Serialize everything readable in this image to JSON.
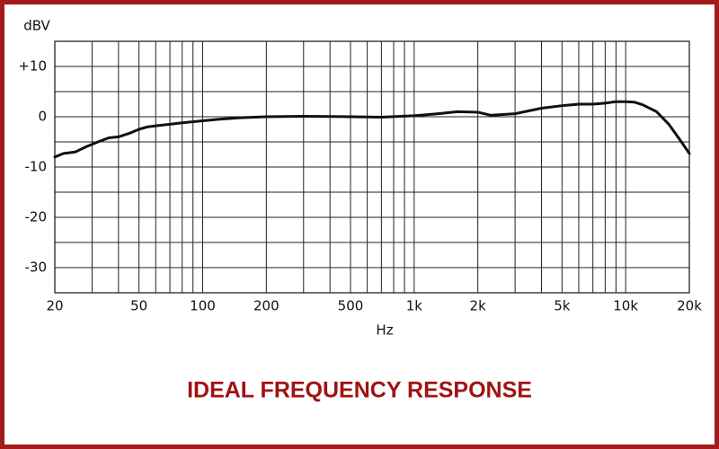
{
  "chart_data": {
    "type": "line",
    "title": "IDEAL FREQUENCY RESPONSE",
    "x_label": "Hz",
    "y_label": "dBV",
    "x_scale": "log",
    "grid": true,
    "xlim": [
      20,
      20000
    ],
    "ylim": [
      -35,
      15
    ],
    "xticks": [
      20,
      50,
      100,
      200,
      500,
      {
        "value": 1000,
        "label": "1k"
      },
      {
        "value": 2000,
        "label": "2k"
      },
      {
        "value": 5000,
        "label": "5k"
      },
      {
        "value": 10000,
        "label": "10k"
      },
      {
        "value": 20000,
        "label": "20k"
      }
    ],
    "x_minor_ticks": [
      30,
      40,
      60,
      70,
      80,
      90,
      300,
      400,
      600,
      700,
      800,
      900,
      3000,
      4000,
      6000,
      7000,
      8000,
      9000
    ],
    "yticks": [
      -30,
      -20,
      -10,
      0,
      {
        "value": 10,
        "label": "+10"
      }
    ],
    "y_minor_ticks": [
      -25,
      -15,
      -5,
      5
    ],
    "series": [
      {
        "color": "#111111",
        "x": [
          20,
          22,
          25,
          28,
          32,
          36,
          40,
          45,
          50,
          55,
          60,
          70,
          80,
          100,
          120,
          150,
          200,
          300,
          500,
          700,
          1000,
          1300,
          1600,
          2000,
          2300,
          3000,
          4000,
          5000,
          6000,
          7000,
          8000,
          9000,
          10000,
          11000,
          12000,
          14000,
          16000,
          18000,
          20000
        ],
        "values": [
          -8,
          -7.3,
          -7,
          -6,
          -5,
          -4.2,
          -4,
          -3.3,
          -2.5,
          -2,
          -1.8,
          -1.5,
          -1.2,
          -0.8,
          -0.5,
          -0.2,
          0,
          0.1,
          0,
          -0.1,
          0.2,
          0.6,
          1,
          0.9,
          0.3,
          0.6,
          1.7,
          2.2,
          2.5,
          2.5,
          2.7,
          3,
          3,
          2.9,
          2.4,
          1,
          -1.5,
          -4.5,
          -7.3
        ]
      }
    ]
  }
}
